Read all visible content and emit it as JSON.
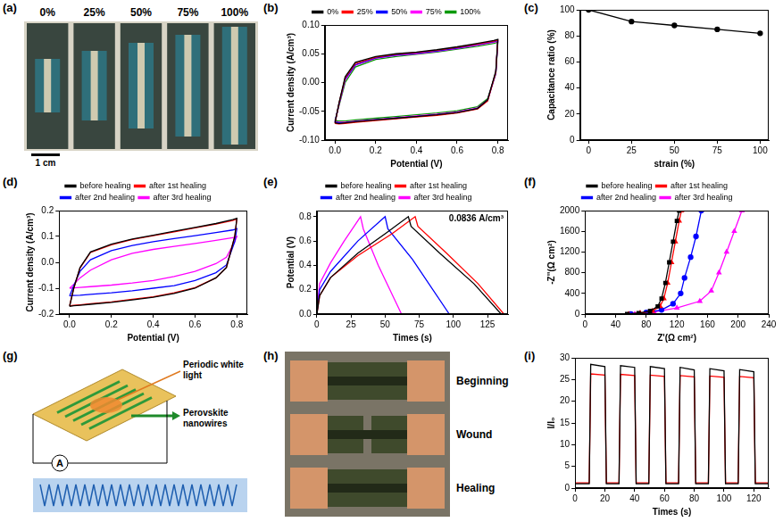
{
  "chart_data": [
    {
      "panel": "(b)",
      "type": "line",
      "x_label": "Potential (V)",
      "y_label": "Current density (A/cm³)",
      "xlim": [
        -0.05,
        0.85
      ],
      "xticks": [
        {
          "value": 0,
          "label": "0.0"
        },
        0.2,
        0.4,
        0.6,
        0.8
      ],
      "ylim": [
        -0.1,
        0.1
      ],
      "yticks": [
        {
          "value": -0.1,
          "label": "-0.10"
        },
        -0.05,
        {
          "value": 0,
          "label": "0.00"
        },
        0.05,
        {
          "value": 0.1,
          "label": "0.10"
        }
      ],
      "grid": false,
      "legend": "top",
      "x": [
        0,
        0.02,
        0.05,
        0.1,
        0.2,
        0.3,
        0.4,
        0.5,
        0.6,
        0.7,
        0.78,
        0.8,
        0.79,
        0.75,
        0.7,
        0.6,
        0.5,
        0.4,
        0.3,
        0.2,
        0.1,
        0.05,
        0.02,
        0
      ],
      "series": [
        {
          "name": "0%",
          "color": "#000000",
          "line_style": "solid",
          "values": [
            -0.07,
            -0.035,
            0.01,
            0.035,
            0.045,
            0.05,
            0.053,
            0.057,
            0.062,
            0.068,
            0.073,
            0.075,
            0.02,
            -0.03,
            -0.045,
            -0.052,
            -0.056,
            -0.059,
            -0.062,
            -0.065,
            -0.068,
            -0.07,
            -0.071,
            -0.07
          ]
        },
        {
          "name": "25%",
          "color": "#ff0000",
          "line_style": "solid",
          "values": [
            -0.071,
            -0.036,
            0.008,
            0.033,
            0.044,
            0.049,
            0.052,
            0.056,
            0.061,
            0.067,
            0.072,
            0.074,
            0.018,
            -0.032,
            -0.046,
            -0.053,
            -0.057,
            -0.06,
            -0.063,
            -0.066,
            -0.069,
            -0.071,
            -0.072,
            -0.071
          ]
        },
        {
          "name": "50%",
          "color": "#0000ff",
          "line_style": "solid",
          "values": [
            -0.069,
            -0.037,
            0.006,
            0.031,
            0.043,
            0.048,
            0.051,
            0.055,
            0.06,
            0.066,
            0.071,
            0.073,
            0.017,
            -0.031,
            -0.045,
            -0.052,
            -0.056,
            -0.059,
            -0.062,
            -0.065,
            -0.068,
            -0.07,
            -0.07,
            -0.069
          ]
        },
        {
          "name": "75%",
          "color": "#ff00ff",
          "line_style": "solid",
          "values": [
            -0.068,
            -0.038,
            0.004,
            0.03,
            0.042,
            0.047,
            0.05,
            0.054,
            0.059,
            0.065,
            0.07,
            0.072,
            0.016,
            -0.03,
            -0.044,
            -0.051,
            -0.055,
            -0.058,
            -0.061,
            -0.064,
            -0.067,
            -0.069,
            -0.069,
            -0.068
          ]
        },
        {
          "name": "100%",
          "color": "#009900",
          "line_style": "solid",
          "values": [
            -0.066,
            -0.04,
            0.0,
            0.027,
            0.04,
            0.045,
            0.049,
            0.053,
            0.058,
            0.063,
            0.068,
            0.07,
            0.015,
            -0.028,
            -0.042,
            -0.049,
            -0.053,
            -0.056,
            -0.059,
            -0.062,
            -0.065,
            -0.067,
            -0.067,
            -0.066
          ]
        }
      ]
    },
    {
      "panel": "(c)",
      "type": "line",
      "x_label": "strain (%)",
      "y_label": "Capacitance ratio (%)",
      "xlim": [
        -5,
        105
      ],
      "xticks": [
        0,
        25,
        50,
        75,
        100
      ],
      "ylim": [
        0,
        100
      ],
      "yticks": [
        0,
        20,
        40,
        60,
        80,
        100
      ],
      "grid": false,
      "x": [
        0,
        25,
        50,
        75,
        100
      ],
      "series": [
        {
          "color": "#000000",
          "marker": "circle",
          "line_style": "solid",
          "values": [
            100,
            91,
            88,
            85,
            82
          ]
        }
      ]
    },
    {
      "panel": "(d)",
      "type": "line",
      "x_label": "Potential (V)",
      "y_label": "Current density (A/cm³)",
      "xlim": [
        -0.05,
        0.85
      ],
      "xticks": [
        {
          "value": 0,
          "label": "0.0"
        },
        0.2,
        0.4,
        0.6,
        0.8
      ],
      "ylim": [
        -0.2,
        0.2
      ],
      "yticks": [
        -0.2,
        -0.1,
        {
          "value": 0,
          "label": "0.0"
        },
        0.1,
        0.2
      ],
      "grid": false,
      "legend": "top",
      "x": [
        0,
        0.02,
        0.05,
        0.1,
        0.2,
        0.3,
        0.4,
        0.5,
        0.6,
        0.7,
        0.78,
        0.8,
        0.79,
        0.75,
        0.7,
        0.6,
        0.5,
        0.4,
        0.3,
        0.2,
        0.1,
        0.05,
        0.02,
        0
      ],
      "series": [
        {
          "name": "before healing",
          "color": "#000000",
          "line_style": "solid",
          "values": [
            -0.17,
            -0.1,
            -0.02,
            0.04,
            0.07,
            0.09,
            0.105,
            0.12,
            0.135,
            0.15,
            0.165,
            0.17,
            0.1,
            -0.02,
            -0.06,
            -0.1,
            -0.12,
            -0.135,
            -0.145,
            -0.155,
            -0.162,
            -0.166,
            -0.168,
            -0.17
          ]
        },
        {
          "name": "after 1st healing",
          "color": "#ff0000",
          "line_style": "solid",
          "values": [
            -0.168,
            -0.1,
            -0.022,
            0.038,
            0.068,
            0.088,
            0.103,
            0.118,
            0.133,
            0.148,
            0.162,
            0.168,
            0.1,
            -0.02,
            -0.06,
            -0.098,
            -0.118,
            -0.133,
            -0.143,
            -0.153,
            -0.16,
            -0.164,
            -0.166,
            -0.168
          ]
        },
        {
          "name": "after 2nd healing",
          "color": "#0000ff",
          "line_style": "solid",
          "values": [
            -0.13,
            -0.09,
            -0.035,
            0.01,
            0.045,
            0.065,
            0.08,
            0.092,
            0.103,
            0.115,
            0.125,
            0.13,
            0.08,
            -0.01,
            -0.04,
            -0.07,
            -0.09,
            -0.1,
            -0.11,
            -0.118,
            -0.124,
            -0.127,
            -0.128,
            -0.13
          ]
        },
        {
          "name": "after 3rd healing",
          "color": "#ff00ff",
          "line_style": "solid",
          "values": [
            -0.1,
            -0.085,
            -0.06,
            -0.03,
            0.01,
            0.035,
            0.05,
            0.062,
            0.073,
            0.085,
            0.095,
            0.1,
            0.08,
            0.02,
            -0.005,
            -0.035,
            -0.055,
            -0.07,
            -0.08,
            -0.088,
            -0.094,
            -0.097,
            -0.099,
            -0.1
          ]
        }
      ]
    },
    {
      "panel": "(e)",
      "type": "line",
      "x_label": "Times (s)",
      "y_label": "Potential (V)",
      "annotation": "0.0836 A/cm³",
      "xlim": [
        0,
        140
      ],
      "xticks": [
        0,
        25,
        50,
        75,
        100,
        125
      ],
      "ylim": [
        0,
        0.85
      ],
      "yticks": [
        {
          "value": 0,
          "label": "0.0"
        },
        0.2,
        0.4,
        0.6,
        0.8
      ],
      "grid": false,
      "legend": "top",
      "series": [
        {
          "name": "before healing",
          "color": "#000000",
          "line_style": "solid",
          "x": [
            0,
            2,
            10,
            30,
            50,
            67,
            69,
            90,
            115,
            135
          ],
          "values": [
            0,
            0.15,
            0.3,
            0.5,
            0.66,
            0.8,
            0.72,
            0.5,
            0.25,
            0
          ]
        },
        {
          "name": "after 1st healing",
          "color": "#ff0000",
          "line_style": "solid",
          "x": [
            0,
            2,
            10,
            30,
            55,
            72,
            74,
            95,
            118,
            137
          ],
          "values": [
            0,
            0.15,
            0.3,
            0.48,
            0.66,
            0.8,
            0.72,
            0.5,
            0.25,
            0
          ]
        },
        {
          "name": "after 2nd healing",
          "color": "#0000ff",
          "line_style": "solid",
          "x": [
            0,
            2,
            10,
            30,
            50,
            52,
            70,
            97
          ],
          "values": [
            0,
            0.2,
            0.35,
            0.6,
            0.8,
            0.7,
            0.45,
            0
          ]
        },
        {
          "name": "after 3rd healing",
          "color": "#ff00ff",
          "line_style": "solid",
          "x": [
            0,
            2,
            10,
            20,
            32,
            34,
            45,
            62
          ],
          "values": [
            0,
            0.25,
            0.42,
            0.6,
            0.8,
            0.7,
            0.4,
            0
          ]
        }
      ]
    },
    {
      "panel": "(f)",
      "type": "line",
      "x_label": "Z'(Ω cm²)",
      "y_label": "-Z''(Ω cm²)",
      "xlim": [
        0,
        240
      ],
      "xticks": [
        0,
        40,
        80,
        120,
        160,
        200,
        240
      ],
      "ylim": [
        0,
        2000
      ],
      "yticks": [
        0,
        400,
        800,
        1200,
        1600,
        2000
      ],
      "grid": false,
      "legend": "top",
      "series": [
        {
          "name": "before healing",
          "color": "#000000",
          "marker": "square",
          "line_style": "solid",
          "x": [
            55,
            70,
            85,
            95,
            100,
            105,
            110,
            115,
            120,
            123
          ],
          "values": [
            0,
            20,
            60,
            150,
            300,
            600,
            1000,
            1400,
            1800,
            2000
          ]
        },
        {
          "name": "after 1st healing",
          "color": "#ff0000",
          "marker": "triangle",
          "line_style": "solid",
          "x": [
            57,
            72,
            88,
            98,
            103,
            108,
            113,
            118,
            123,
            126
          ],
          "values": [
            0,
            20,
            60,
            150,
            300,
            600,
            1000,
            1400,
            1800,
            2000
          ]
        },
        {
          "name": "after 2nd healing",
          "color": "#0000ff",
          "marker": "circle",
          "line_style": "solid",
          "x": [
            60,
            80,
            100,
            115,
            125,
            130,
            138,
            145,
            152
          ],
          "values": [
            0,
            30,
            80,
            200,
            400,
            700,
            1100,
            1500,
            2000
          ]
        },
        {
          "name": "after 3rd healing",
          "color": "#ff00ff",
          "marker": "triangle",
          "line_style": "solid",
          "x": [
            65,
            90,
            120,
            150,
            165,
            175,
            185,
            195,
            205
          ],
          "values": [
            0,
            40,
            120,
            250,
            450,
            800,
            1200,
            1600,
            2000
          ]
        }
      ]
    },
    {
      "panel": "(i)",
      "type": "line",
      "x_label": "Times (s)",
      "y_label": "I/I₀",
      "xlim": [
        0,
        130
      ],
      "xticks": [
        0,
        20,
        40,
        60,
        80,
        100,
        120
      ],
      "ylim": [
        0,
        30
      ],
      "yticks": [
        0,
        5,
        10,
        15,
        20,
        25,
        30
      ],
      "grid": false,
      "x": [
        0,
        9.5,
        10.5,
        20,
        21,
        29.5,
        30.5,
        40,
        41,
        49.5,
        50.5,
        60,
        61,
        69.5,
        70.5,
        80,
        81,
        89.5,
        90.5,
        100,
        101,
        109.5,
        110.5,
        120,
        121,
        130
      ],
      "series": [
        {
          "color": "#000000",
          "line_style": "solid",
          "values": [
            1,
            1,
            28.5,
            28,
            1,
            1,
            28.2,
            27.8,
            1,
            1,
            28,
            27.5,
            1,
            1,
            27.8,
            27.2,
            1,
            1,
            27.5,
            27,
            1,
            1,
            27.3,
            26.8,
            1,
            1
          ]
        },
        {
          "color": "#ff0000",
          "line_style": "solid",
          "values": [
            1.2,
            1.2,
            26.3,
            26,
            1.2,
            1.2,
            26.2,
            25.9,
            1.2,
            1.2,
            26,
            25.7,
            1.2,
            1.2,
            25.9,
            25.6,
            1.2,
            1.2,
            25.8,
            25.5,
            1.2,
            1.2,
            25.7,
            25.4,
            1.2,
            1.2
          ]
        }
      ]
    }
  ],
  "images": [
    {
      "panel": "(a)",
      "labels": [
        "0%",
        "25%",
        "50%",
        "75%",
        "100%"
      ],
      "scale_bar": "1 cm"
    },
    {
      "panel": "(g)",
      "labels": [
        "Periodic white light",
        "Perovskite nanowires"
      ],
      "meter": "A"
    },
    {
      "panel": "(h)",
      "labels": [
        "Beginning",
        "Wound",
        "Healing"
      ]
    }
  ]
}
